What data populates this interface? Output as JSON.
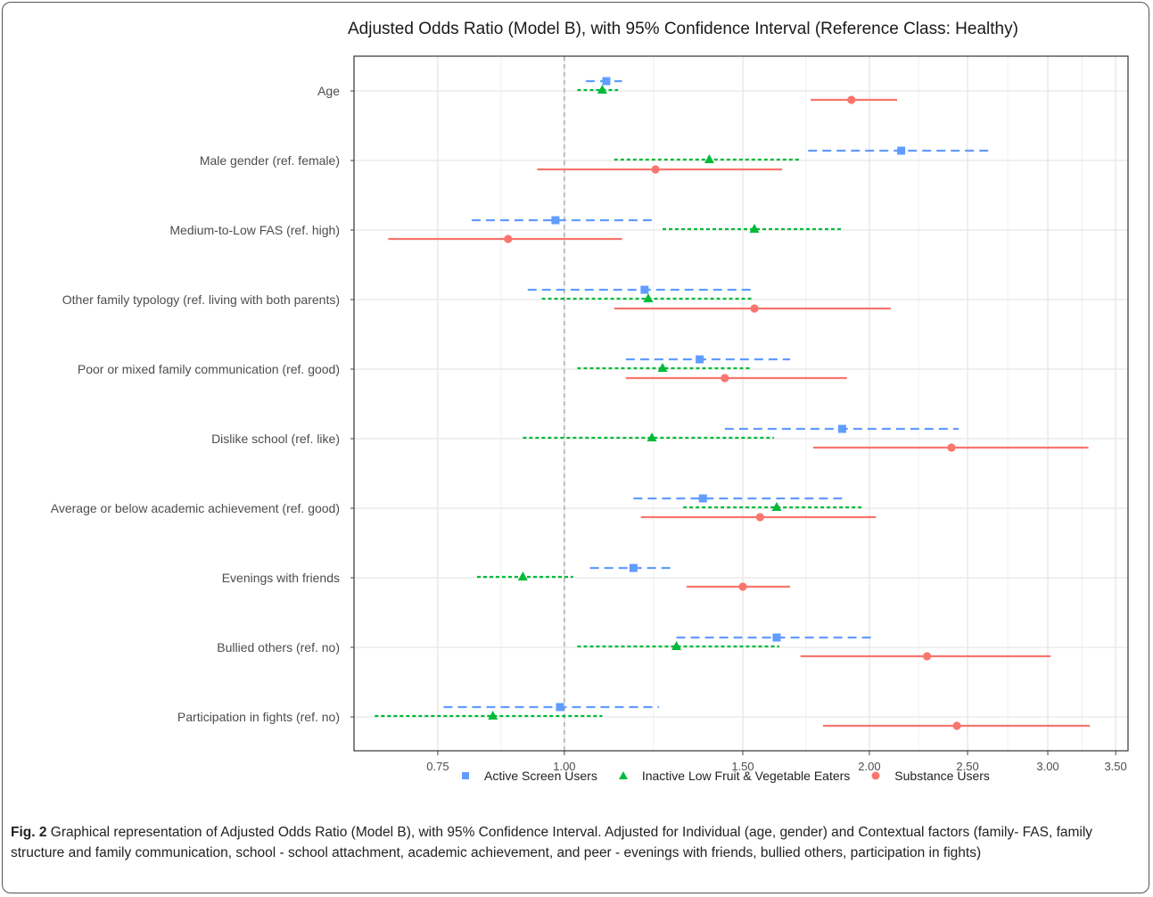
{
  "chart_data": {
    "type": "forest",
    "title": "Adjusted Odds Ratio (Model B), with 95% Confidence Interval (Reference Class: Healthy)",
    "x_scale": "log",
    "xlim": [
      0.62,
      3.6
    ],
    "reference_line": 1.0,
    "x_ticks": [
      0.75,
      1.0,
      1.5,
      2.0,
      2.5,
      3.0,
      3.5
    ],
    "x_tick_labels": [
      "0.75",
      "1.00",
      "1.50",
      "2.00",
      "2.50",
      "3.00",
      "3.50"
    ],
    "categories": [
      "Age",
      "Male gender (ref. female)",
      "Medium-to-Low FAS (ref. high)",
      "Other family typology (ref. living with both parents)",
      "Poor or mixed family communication (ref. good)",
      "Dislike school (ref. like)",
      "Average or below academic achievement (ref. good)",
      "Evenings with friends",
      "Bullied others (ref. no)",
      "Participation in fights (ref. no)"
    ],
    "series": [
      {
        "name": "Active Screen Users",
        "color": "#619CFF",
        "marker": "square",
        "linestyle": "dashed",
        "points": [
          {
            "or": 1.1,
            "lo": 1.05,
            "hi": 1.14
          },
          {
            "or": 2.15,
            "lo": 1.74,
            "hi": 2.65
          },
          {
            "or": 0.98,
            "lo": 0.81,
            "hi": 1.22
          },
          {
            "or": 1.2,
            "lo": 0.92,
            "hi": 1.53
          },
          {
            "or": 1.36,
            "lo": 1.15,
            "hi": 1.67
          },
          {
            "or": 1.88,
            "lo": 1.44,
            "hi": 2.45
          },
          {
            "or": 1.37,
            "lo": 1.17,
            "hi": 1.88
          },
          {
            "or": 1.17,
            "lo": 1.06,
            "hi": 1.28
          },
          {
            "or": 1.62,
            "lo": 1.29,
            "hi": 2.03
          },
          {
            "or": 0.99,
            "lo": 0.76,
            "hi": 1.24
          }
        ]
      },
      {
        "name": "Inactive Low Fruit & Vegetable Eaters",
        "color": "#00BA38",
        "marker": "triangle",
        "linestyle": "dotted",
        "points": [
          {
            "or": 1.09,
            "lo": 1.03,
            "hi": 1.13
          },
          {
            "or": 1.39,
            "lo": 1.12,
            "hi": 1.71
          },
          {
            "or": 1.54,
            "lo": 1.25,
            "hi": 1.88
          },
          {
            "or": 1.21,
            "lo": 0.95,
            "hi": 1.53
          },
          {
            "or": 1.25,
            "lo": 1.03,
            "hi": 1.53
          },
          {
            "or": 1.22,
            "lo": 0.91,
            "hi": 1.61
          },
          {
            "or": 1.62,
            "lo": 1.31,
            "hi": 1.97
          },
          {
            "or": 0.91,
            "lo": 0.82,
            "hi": 1.02
          },
          {
            "or": 1.29,
            "lo": 1.03,
            "hi": 1.63
          },
          {
            "or": 0.85,
            "lo": 0.65,
            "hi": 1.09
          }
        ]
      },
      {
        "name": "Substance Users",
        "color": "#F8766D",
        "marker": "circle",
        "linestyle": "solid",
        "points": [
          {
            "or": 1.92,
            "lo": 1.75,
            "hi": 2.13
          },
          {
            "or": 1.23,
            "lo": 0.94,
            "hi": 1.64
          },
          {
            "or": 0.88,
            "lo": 0.67,
            "hi": 1.14
          },
          {
            "or": 1.54,
            "lo": 1.12,
            "hi": 2.1
          },
          {
            "or": 1.44,
            "lo": 1.15,
            "hi": 1.9
          },
          {
            "or": 2.41,
            "lo": 1.76,
            "hi": 3.29
          },
          {
            "or": 1.56,
            "lo": 1.19,
            "hi": 2.03
          },
          {
            "or": 1.5,
            "lo": 1.32,
            "hi": 1.67
          },
          {
            "or": 2.28,
            "lo": 1.71,
            "hi": 3.02
          },
          {
            "or": 2.44,
            "lo": 1.8,
            "hi": 3.3
          }
        ]
      }
    ]
  },
  "caption": {
    "label": "Fig. 2",
    "text": " Graphical representation of Adjusted Odds Ratio (Model B), with 95% Confidence Interval. Adjusted for Individual (age, gender) and Contextual factors (family- FAS, family structure and family communication, school - school attachment, academic achievement, and peer - evenings with friends, bullied others, participation in fights)"
  }
}
